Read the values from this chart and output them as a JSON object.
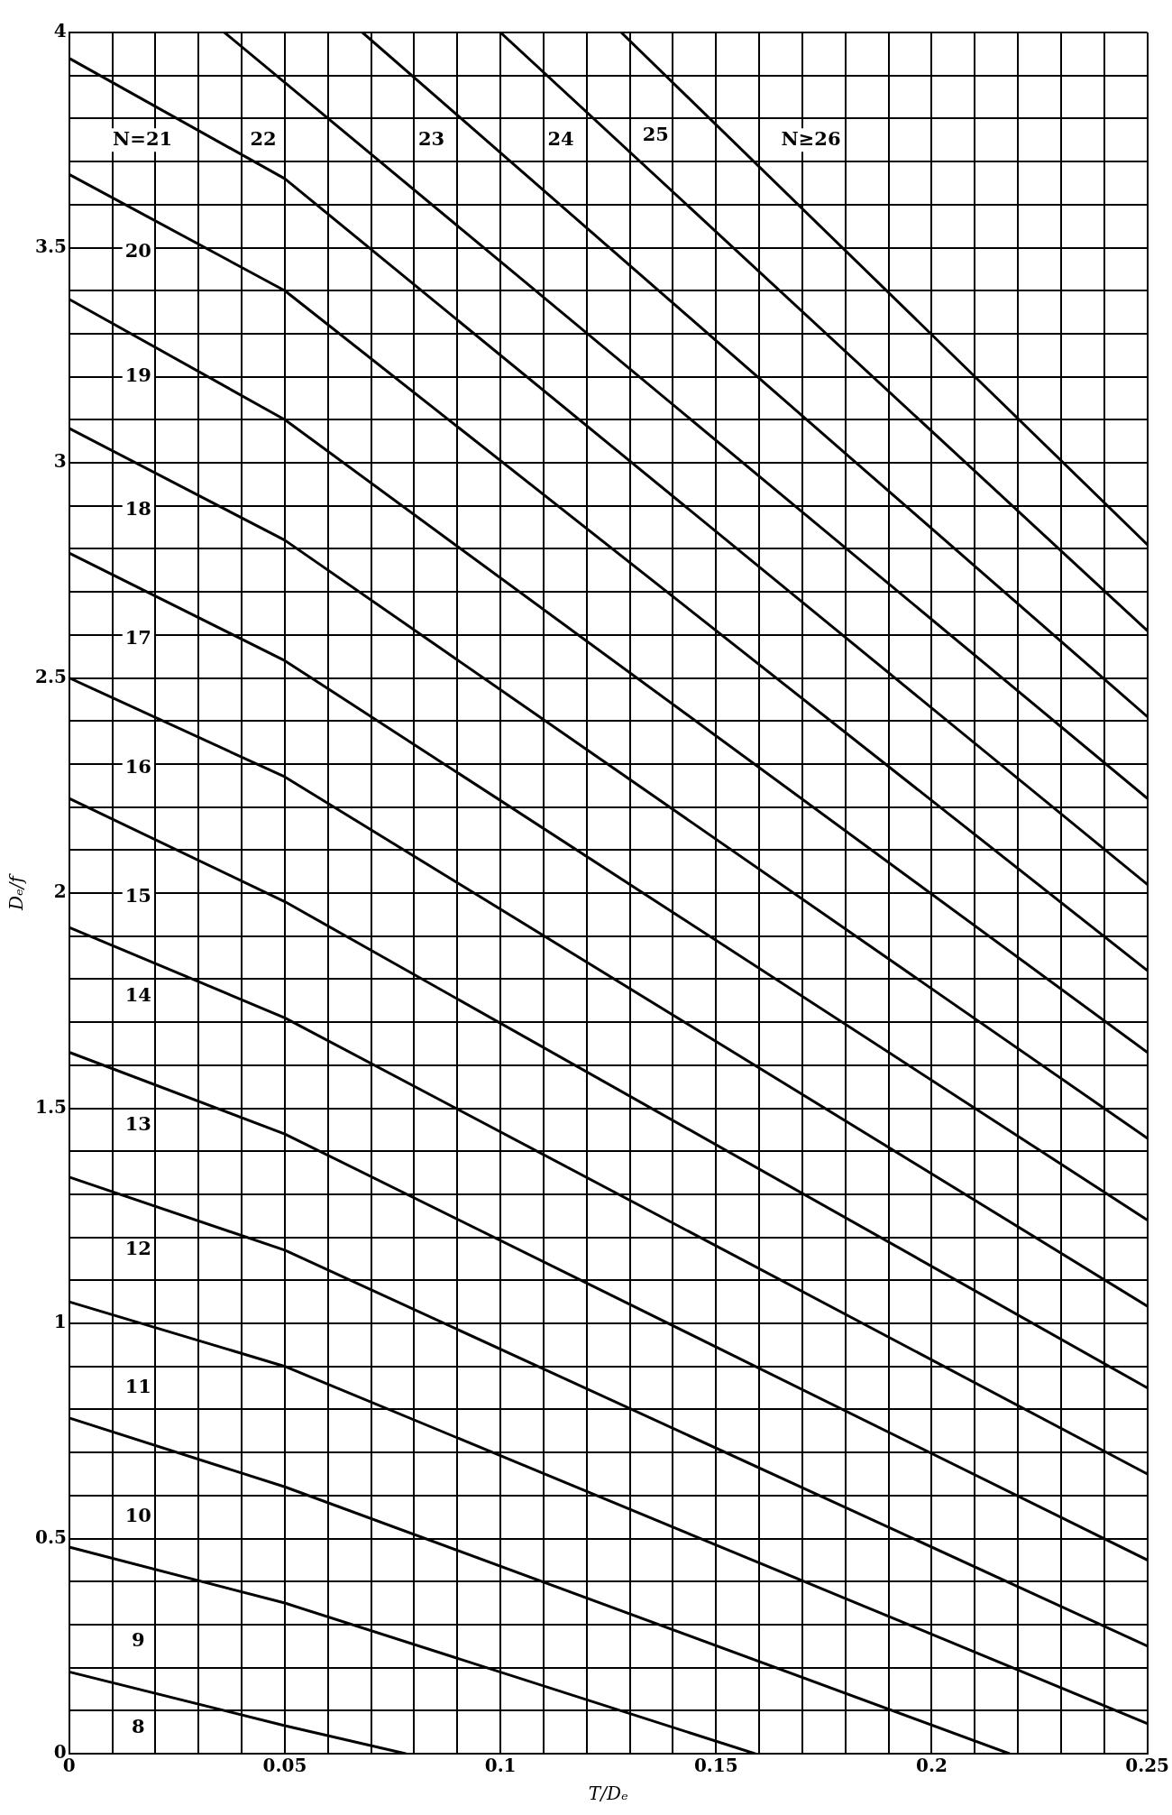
{
  "chart_data": {
    "type": "line",
    "xlabel": "T/Dₑ",
    "ylabel": "Dₑ/f",
    "xlim": [
      0,
      0.25
    ],
    "ylim": [
      0,
      4
    ],
    "xticks": [
      0,
      {
        "value": 0.01,
        "label": null
      },
      {
        "value": 0.02,
        "label": null
      },
      {
        "value": 0.03,
        "label": null
      },
      {
        "value": 0.04,
        "label": null
      },
      0.05,
      {
        "value": 0.06,
        "label": null
      },
      {
        "value": 0.07,
        "label": null
      },
      {
        "value": 0.08,
        "label": null
      },
      {
        "value": 0.09,
        "label": null
      },
      0.1,
      {
        "value": 0.11,
        "label": null
      },
      {
        "value": 0.12,
        "label": null
      },
      {
        "value": 0.13,
        "label": null
      },
      {
        "value": 0.14,
        "label": null
      },
      0.15,
      {
        "value": 0.16,
        "label": null
      },
      {
        "value": 0.17,
        "label": null
      },
      {
        "value": 0.18,
        "label": null
      },
      {
        "value": 0.19,
        "label": null
      },
      0.2,
      {
        "value": 0.21,
        "label": null
      },
      {
        "value": 0.22,
        "label": null
      },
      {
        "value": 0.23,
        "label": null
      },
      {
        "value": 0.24,
        "label": null
      },
      0.25
    ],
    "yticks": [
      0,
      {
        "value": 0.1,
        "label": null
      },
      {
        "value": 0.2,
        "label": null
      },
      {
        "value": 0.3,
        "label": null
      },
      {
        "value": 0.4,
        "label": null
      },
      0.5,
      {
        "value": 0.6,
        "label": null
      },
      {
        "value": 0.7,
        "label": null
      },
      {
        "value": 0.8,
        "label": null
      },
      {
        "value": 0.9,
        "label": null
      },
      1,
      {
        "value": 1.1,
        "label": null
      },
      {
        "value": 1.2,
        "label": null
      },
      {
        "value": 1.3,
        "label": null
      },
      {
        "value": 1.4,
        "label": null
      },
      1.5,
      {
        "value": 1.6,
        "label": null
      },
      {
        "value": 1.7,
        "label": null
      },
      {
        "value": 1.8,
        "label": null
      },
      {
        "value": 1.9,
        "label": null
      },
      2,
      {
        "value": 2.1,
        "label": null
      },
      {
        "value": 2.2,
        "label": null
      },
      {
        "value": 2.3,
        "label": null
      },
      {
        "value": 2.4,
        "label": null
      },
      2.5,
      {
        "value": 2.6,
        "label": null
      },
      {
        "value": 2.7,
        "label": null
      },
      {
        "value": 2.8,
        "label": null
      },
      {
        "value": 2.9,
        "label": null
      },
      3,
      {
        "value": 3.1,
        "label": null
      },
      {
        "value": 3.2,
        "label": null
      },
      {
        "value": 3.3,
        "label": null
      },
      {
        "value": 3.4,
        "label": null
      },
      3.5,
      {
        "value": 3.6,
        "label": null
      },
      {
        "value": 3.7,
        "label": null
      },
      {
        "value": 3.8,
        "label": null
      },
      {
        "value": 3.9,
        "label": null
      },
      4
    ],
    "grid": true,
    "legend": false,
    "marker": "none",
    "line_style": "solid",
    "series": [
      {
        "color": "#000000",
        "x": [
          0,
          0.05,
          0.078
        ],
        "values": [
          0.19,
          0.065,
          0
        ]
      },
      {
        "color": "#000000",
        "x": [
          0,
          0.05,
          0.159
        ],
        "values": [
          0.48,
          0.35,
          0
        ]
      },
      {
        "color": "#000000",
        "x": [
          0,
          0.05,
          0.218
        ],
        "values": [
          0.78,
          0.62,
          0
        ]
      },
      {
        "color": "#000000",
        "x": [
          0,
          0.05,
          0.25
        ],
        "values": [
          1.05,
          0.9,
          0.07
        ]
      },
      {
        "color": "#000000",
        "x": [
          0,
          0.05,
          0.25
        ],
        "values": [
          1.34,
          1.17,
          0.25
        ]
      },
      {
        "color": "#000000",
        "x": [
          0,
          0.05,
          0.25
        ],
        "values": [
          1.63,
          1.44,
          0.45
        ]
      },
      {
        "color": "#000000",
        "x": [
          0,
          0.05,
          0.25
        ],
        "values": [
          1.92,
          1.71,
          0.65
        ]
      },
      {
        "color": "#000000",
        "x": [
          0,
          0.05,
          0.25
        ],
        "values": [
          2.22,
          1.98,
          0.85
        ]
      },
      {
        "color": "#000000",
        "x": [
          0,
          0.05,
          0.25
        ],
        "values": [
          2.5,
          2.27,
          1.04
        ]
      },
      {
        "color": "#000000",
        "x": [
          0,
          0.05,
          0.25
        ],
        "values": [
          2.79,
          2.54,
          1.24
        ]
      },
      {
        "color": "#000000",
        "x": [
          0,
          0.05,
          0.25
        ],
        "values": [
          3.08,
          2.82,
          1.43
        ]
      },
      {
        "color": "#000000",
        "x": [
          0,
          0.05,
          0.25
        ],
        "values": [
          3.38,
          3.1,
          1.63
        ]
      },
      {
        "color": "#000000",
        "x": [
          0,
          0.05,
          0.25
        ],
        "values": [
          3.67,
          3.4,
          1.82
        ]
      },
      {
        "color": "#000000",
        "x": [
          0,
          0.05,
          0.25
        ],
        "values": [
          3.94,
          3.66,
          2.02
        ]
      },
      {
        "color": "#000000",
        "x": [
          0.036,
          0.25
        ],
        "values": [
          4,
          2.22
        ]
      },
      {
        "color": "#000000",
        "x": [
          0.068,
          0.25
        ],
        "values": [
          4,
          2.41
        ]
      },
      {
        "color": "#000000",
        "x": [
          0.1,
          0.25
        ],
        "values": [
          4,
          2.61
        ]
      },
      {
        "color": "#000000",
        "x": [
          0.128,
          0.25
        ],
        "values": [
          4,
          2.81
        ]
      }
    ],
    "annotations": [
      "N=21",
      "22",
      "23",
      "24",
      "25",
      "N≥26",
      "20",
      "19",
      "18",
      "17",
      "16",
      "15",
      "14",
      "13",
      "12",
      "11",
      "10",
      "9",
      "8"
    ]
  }
}
